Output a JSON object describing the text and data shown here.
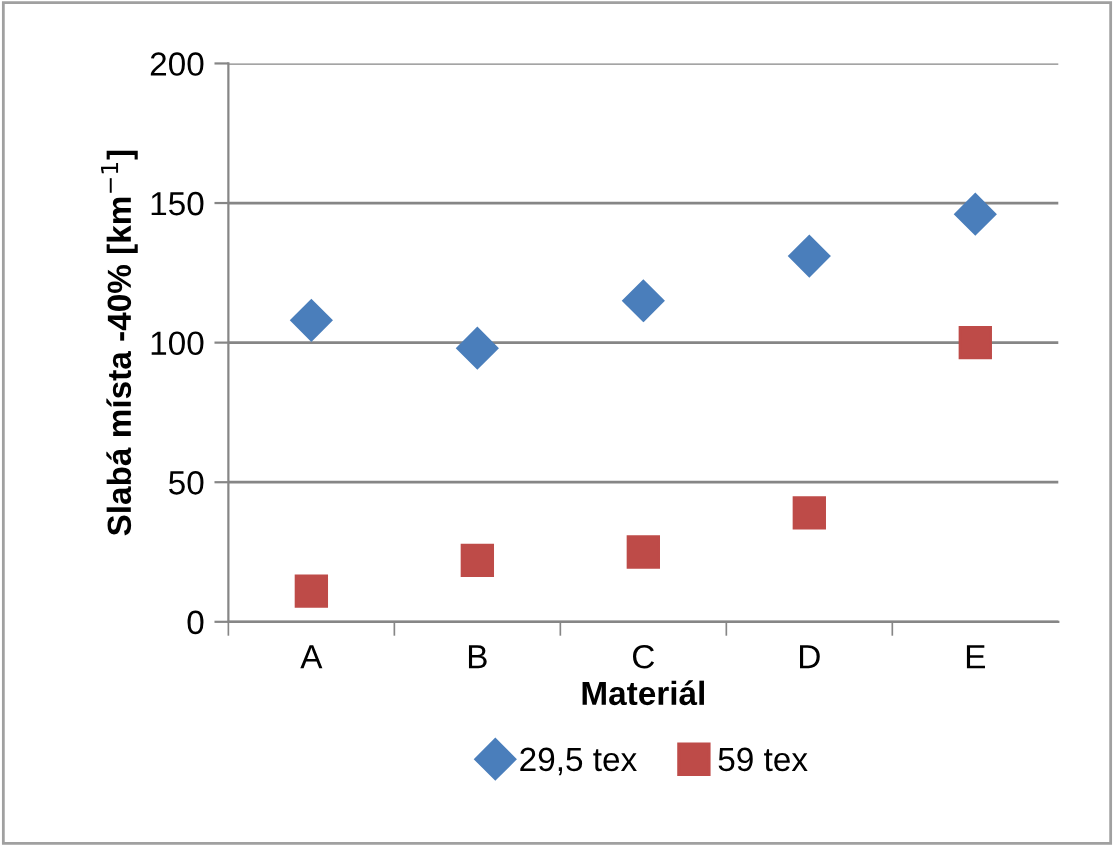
{
  "chart_data": {
    "type": "scatter",
    "xlabel": "Materiál",
    "ylabel": "Slabá místa -40% [km$^{−1}$]",
    "categories": [
      "A",
      "B",
      "C",
      "D",
      "E"
    ],
    "series": [
      {
        "name": "29,5 tex",
        "color": "#4a7ebb",
        "marker": "diamond",
        "values": [
          108,
          98,
          115,
          131,
          146
        ]
      },
      {
        "name": "59 tex",
        "color": "#be4b48",
        "marker": "square",
        "values": [
          11,
          22,
          25,
          39,
          100
        ]
      }
    ],
    "ylim": [
      0,
      200
    ],
    "yticks": [
      0,
      50,
      100,
      150,
      200
    ],
    "grid": "y",
    "legend": "bottom"
  }
}
